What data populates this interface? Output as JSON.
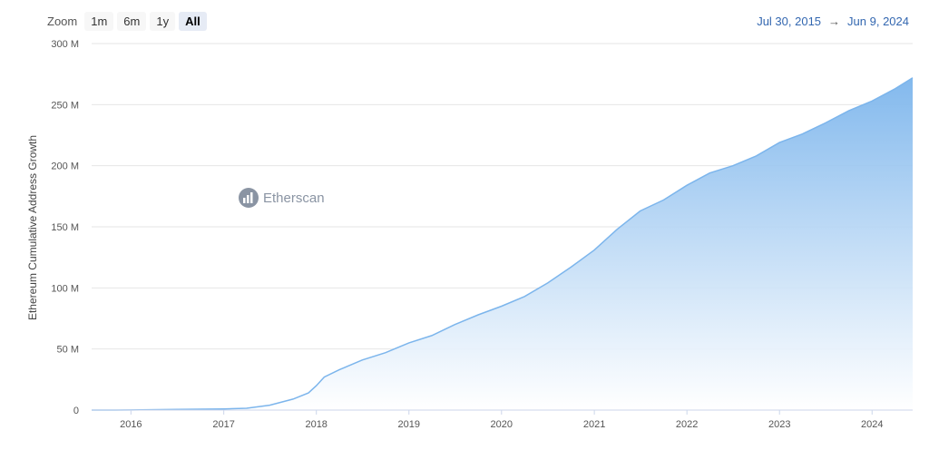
{
  "zoom": {
    "label": "Zoom",
    "buttons": [
      {
        "label": "1m",
        "active": false
      },
      {
        "label": "6m",
        "active": false
      },
      {
        "label": "1y",
        "active": false
      },
      {
        "label": "All",
        "active": true
      }
    ]
  },
  "range": {
    "from": "Jul 30, 2015",
    "arrow": "→",
    "to": "Jun 9, 2024"
  },
  "watermark": {
    "text": "Etherscan",
    "icon": "etherscan-logo-icon"
  },
  "colors": {
    "line": "#7cb5ec",
    "fill_top": "#7cb5ec",
    "fill_bottom": "#ffffff",
    "grid": "#e6e6e6"
  },
  "chart_data": {
    "type": "area",
    "title": "",
    "ylabel": "Ethereum Cumulative Address Growth",
    "xlabel": "",
    "ylim": [
      0,
      300000000
    ],
    "xlim": [
      "2015-07-30",
      "2024-06-09"
    ],
    "y_ticks": [
      {
        "value": 0,
        "label": "0"
      },
      {
        "value": 50000000,
        "label": "50 M"
      },
      {
        "value": 100000000,
        "label": "100 M"
      },
      {
        "value": 150000000,
        "label": "150 M"
      },
      {
        "value": 200000000,
        "label": "200 M"
      },
      {
        "value": 250000000,
        "label": "250 M"
      },
      {
        "value": 300000000,
        "label": "300 M"
      }
    ],
    "x_ticks": [
      {
        "value": "2016-01-01",
        "label": "2016"
      },
      {
        "value": "2017-01-01",
        "label": "2017"
      },
      {
        "value": "2018-01-01",
        "label": "2018"
      },
      {
        "value": "2019-01-01",
        "label": "2019"
      },
      {
        "value": "2020-01-01",
        "label": "2020"
      },
      {
        "value": "2021-01-01",
        "label": "2021"
      },
      {
        "value": "2022-01-01",
        "label": "2022"
      },
      {
        "value": "2023-01-01",
        "label": "2023"
      },
      {
        "value": "2024-01-01",
        "label": "2024"
      }
    ],
    "grid": true,
    "legend": "none",
    "series": [
      {
        "points": [
          [
            "2015-07-30",
            0
          ],
          [
            "2016-01-01",
            100000
          ],
          [
            "2016-07-01",
            500000
          ],
          [
            "2017-01-01",
            1000000
          ],
          [
            "2017-04-01",
            1500000
          ],
          [
            "2017-07-01",
            4000000
          ],
          [
            "2017-10-01",
            9000000
          ],
          [
            "2017-12-01",
            14000000
          ],
          [
            "2018-01-01",
            20000000
          ],
          [
            "2018-02-01",
            27000000
          ],
          [
            "2018-04-01",
            33000000
          ],
          [
            "2018-07-01",
            41000000
          ],
          [
            "2018-10-01",
            47000000
          ],
          [
            "2019-01-01",
            55000000
          ],
          [
            "2019-04-01",
            61000000
          ],
          [
            "2019-07-01",
            70000000
          ],
          [
            "2019-10-01",
            78000000
          ],
          [
            "2020-01-01",
            85000000
          ],
          [
            "2020-04-01",
            93000000
          ],
          [
            "2020-07-01",
            104000000
          ],
          [
            "2020-10-01",
            117000000
          ],
          [
            "2021-01-01",
            131000000
          ],
          [
            "2021-04-01",
            148000000
          ],
          [
            "2021-07-01",
            163000000
          ],
          [
            "2021-10-01",
            172000000
          ],
          [
            "2022-01-01",
            184000000
          ],
          [
            "2022-04-01",
            194000000
          ],
          [
            "2022-07-01",
            200000000
          ],
          [
            "2022-10-01",
            208000000
          ],
          [
            "2023-01-01",
            219000000
          ],
          [
            "2023-04-01",
            226000000
          ],
          [
            "2023-07-01",
            235000000
          ],
          [
            "2023-10-01",
            245000000
          ],
          [
            "2024-01-01",
            253000000
          ],
          [
            "2024-04-01",
            263000000
          ],
          [
            "2024-06-09",
            272000000
          ]
        ]
      }
    ]
  }
}
